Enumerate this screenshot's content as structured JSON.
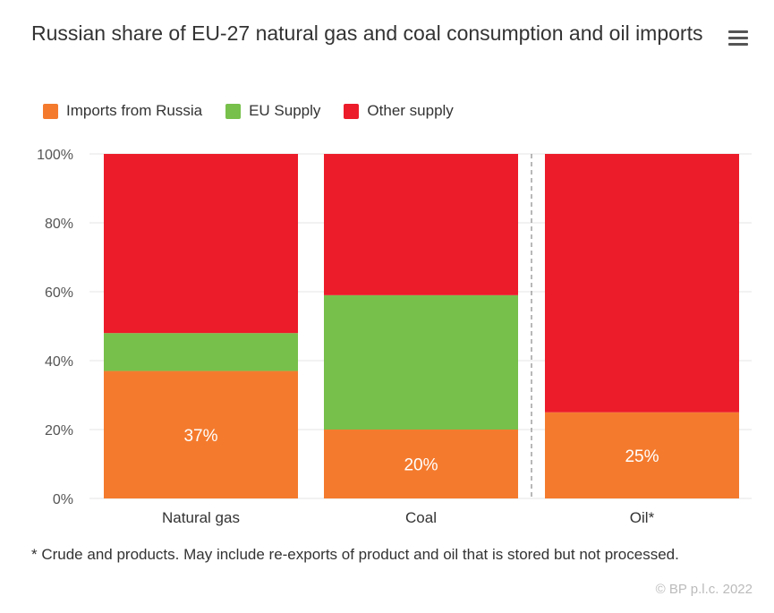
{
  "title": "Russian share of EU-27 natural gas and coal consumption and oil imports",
  "menu_icon": "hamburger-menu-icon",
  "footnote": "* Crude and products. May include re-exports of product and oil that is stored but not processed.",
  "credit": "© BP p.l.c. 2022",
  "chart_data": {
    "type": "bar",
    "stacked": true,
    "title": "Russian share of EU-27 natural gas and coal consumption and oil imports",
    "categories": [
      "Natural gas",
      "Coal",
      "Oil*"
    ],
    "series": [
      {
        "name": "Imports from Russia",
        "color": "#f47b2e",
        "values": [
          37,
          20,
          25
        ]
      },
      {
        "name": "EU Supply",
        "color": "#77c04b",
        "values": [
          11,
          39,
          0
        ]
      },
      {
        "name": "Other supply",
        "color": "#ec1c2a",
        "values": [
          52,
          41,
          75
        ]
      }
    ],
    "data_labels": [
      "37%",
      "20%",
      "25%"
    ],
    "yticks": [
      "0%",
      "20%",
      "40%",
      "60%",
      "80%",
      "100%"
    ],
    "ylim": [
      0,
      100
    ],
    "grid": true,
    "legend": "top-left",
    "xlabel": "",
    "ylabel": ""
  }
}
